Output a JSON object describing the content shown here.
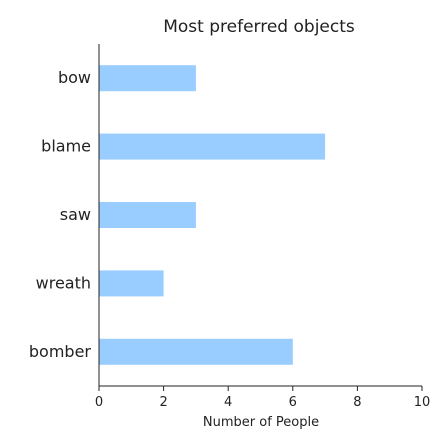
{
  "chart_data": {
    "type": "bar",
    "orientation": "horizontal",
    "title": "Most preferred objects",
    "xlabel": "Number of People",
    "ylabel": "",
    "categories": [
      "bomber",
      "wreath",
      "saw",
      "blame",
      "bow"
    ],
    "values": [
      6,
      2,
      3,
      7,
      3
    ],
    "xlim": [
      0,
      10
    ],
    "xticks": [
      0,
      2,
      4,
      6,
      8,
      10
    ],
    "grid": false,
    "bar_color": "#99ccff"
  }
}
